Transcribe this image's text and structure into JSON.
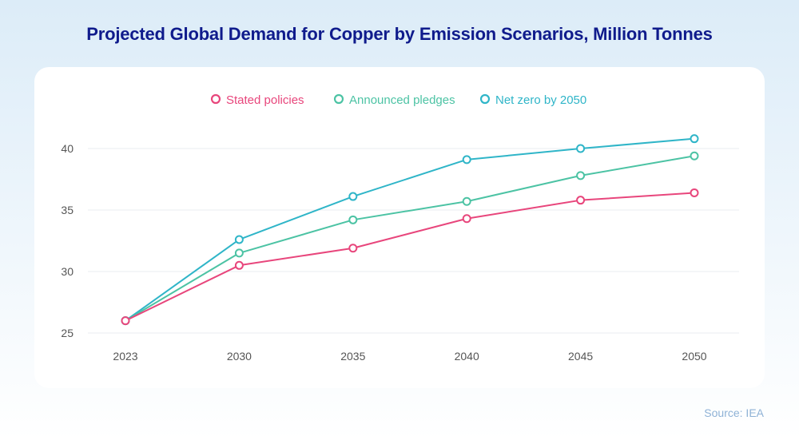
{
  "title": "Projected Global Demand for Copper by Emission Scenarios, Million Tonnes",
  "source": "Source: IEA",
  "chart_data": {
    "type": "line",
    "title": "Projected Global Demand for Copper by Emission Scenarios, Million Tonnes",
    "xlabel": "",
    "ylabel": "",
    "x": [
      "2023",
      "2030",
      "2035",
      "2040",
      "2045",
      "2050"
    ],
    "ylim": [
      25,
      40
    ],
    "yticks": [
      25,
      30,
      35,
      40
    ],
    "grid": true,
    "legend_position": "top-center",
    "series": [
      {
        "name": "Stated policies",
        "color": "#e8467c",
        "values": [
          26,
          30.5,
          31.9,
          34.3,
          35.8,
          36.4
        ]
      },
      {
        "name": "Announced pledges",
        "color": "#4cc3a4",
        "values": [
          26,
          31.5,
          34.2,
          35.7,
          37.8,
          39.4
        ]
      },
      {
        "name": "Net zero by 2050",
        "color": "#2fb5c8",
        "values": [
          26,
          32.6,
          36.1,
          39.1,
          40,
          40.8
        ]
      }
    ]
  }
}
